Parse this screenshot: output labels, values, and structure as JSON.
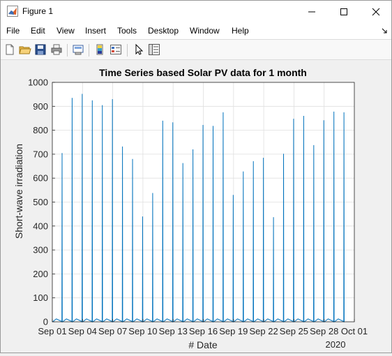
{
  "window": {
    "title": "Figure 1",
    "controls": [
      "minimize",
      "maximize",
      "close"
    ]
  },
  "menu": {
    "items": [
      "File",
      "Edit",
      "View",
      "Insert",
      "Tools",
      "Desktop",
      "Window",
      "Help"
    ]
  },
  "toolbar": {
    "buttons": [
      "new-figure-icon",
      "open-file-icon",
      "save-icon",
      "print-icon",
      "link-plot-icon",
      "colorbar-icon",
      "legend-icon",
      "pointer-icon",
      "property-inspector-icon"
    ]
  },
  "chart_data": {
    "type": "line",
    "title": "Time Series based Solar PV data for 1 month",
    "xlabel": "# Date",
    "ylabel": "Short-wave irradiation",
    "x_secondary_label": "2020",
    "x_ticks": [
      "Sep 01",
      "Sep 04",
      "Sep 07",
      "Sep 10",
      "Sep 13",
      "Sep 16",
      "Sep 19",
      "Sep 22",
      "Sep 25",
      "Sep 28",
      "Oct 01"
    ],
    "y_ticks": [
      "0",
      "100",
      "200",
      "300",
      "400",
      "500",
      "600",
      "700",
      "800",
      "900",
      "1000"
    ],
    "ylim": [
      0,
      1000
    ],
    "xlim_days": [
      0,
      30
    ],
    "grid": true,
    "series_color": "#0072bd",
    "daily_peaks": [
      {
        "date": "2020-09-01",
        "peak": 705
      },
      {
        "date": "2020-09-02",
        "peak": 935
      },
      {
        "date": "2020-09-03",
        "peak": 952
      },
      {
        "date": "2020-09-04",
        "peak": 925
      },
      {
        "date": "2020-09-05",
        "peak": 905
      },
      {
        "date": "2020-09-06",
        "peak": 930
      },
      {
        "date": "2020-09-07",
        "peak": 732
      },
      {
        "date": "2020-09-08",
        "peak": 680
      },
      {
        "date": "2020-09-09",
        "peak": 440
      },
      {
        "date": "2020-09-10",
        "peak": 538
      },
      {
        "date": "2020-09-11",
        "peak": 840
      },
      {
        "date": "2020-09-12",
        "peak": 833
      },
      {
        "date": "2020-09-13",
        "peak": 663
      },
      {
        "date": "2020-09-14",
        "peak": 720
      },
      {
        "date": "2020-09-15",
        "peak": 822
      },
      {
        "date": "2020-09-16",
        "peak": 818
      },
      {
        "date": "2020-09-17",
        "peak": 875
      },
      {
        "date": "2020-09-18",
        "peak": 530
      },
      {
        "date": "2020-09-19",
        "peak": 628
      },
      {
        "date": "2020-09-20",
        "peak": 671
      },
      {
        "date": "2020-09-21",
        "peak": 685
      },
      {
        "date": "2020-09-22",
        "peak": 437
      },
      {
        "date": "2020-09-23",
        "peak": 702
      },
      {
        "date": "2020-09-24",
        "peak": 848
      },
      {
        "date": "2020-09-25",
        "peak": 860
      },
      {
        "date": "2020-09-26",
        "peak": 738
      },
      {
        "date": "2020-09-27",
        "peak": 842
      },
      {
        "date": "2020-09-28",
        "peak": 878
      },
      {
        "date": "2020-09-29",
        "peak": 875
      }
    ]
  }
}
